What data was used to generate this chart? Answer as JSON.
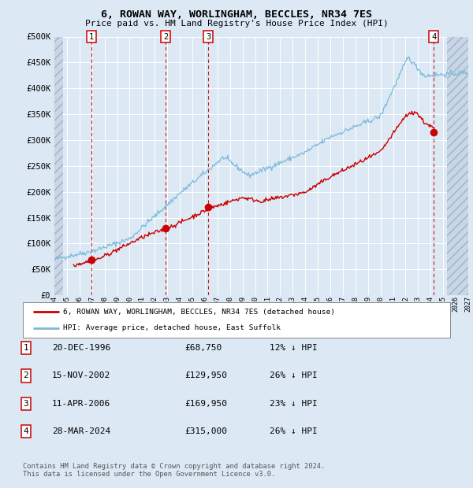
{
  "title": "6, ROWAN WAY, WORLINGHAM, BECCLES, NR34 7ES",
  "subtitle": "Price paid vs. HM Land Registry's House Price Index (HPI)",
  "background_color": "#dce9f5",
  "plot_bg_color": "#dce9f5",
  "hpi_line_color": "#7ab8d9",
  "price_line_color": "#cc0000",
  "marker_color": "#cc0000",
  "vline_color": "#cc0000",
  "grid_color": "#ffffff",
  "ylim": [
    0,
    500000
  ],
  "yticks": [
    0,
    50000,
    100000,
    150000,
    200000,
    250000,
    300000,
    350000,
    400000,
    450000,
    500000
  ],
  "xlabel_start": 1994,
  "xlabel_end": 2027,
  "transactions": [
    {
      "num": 1,
      "date": "20-DEC-1996",
      "year": 1996.96,
      "price": 68750,
      "pct": "12%",
      "dir": "↓"
    },
    {
      "num": 2,
      "date": "15-NOV-2002",
      "year": 2002.87,
      "price": 129950,
      "pct": "26%",
      "dir": "↓"
    },
    {
      "num": 3,
      "date": "11-APR-2006",
      "year": 2006.27,
      "price": 169950,
      "pct": "23%",
      "dir": "↓"
    },
    {
      "num": 4,
      "date": "28-MAR-2024",
      "year": 2024.24,
      "price": 315000,
      "pct": "26%",
      "dir": "↓"
    }
  ],
  "legend_line1": "6, ROWAN WAY, WORLINGHAM, BECCLES, NR34 7ES (detached house)",
  "legend_line2": "HPI: Average price, detached house, East Suffolk",
  "footer": "Contains HM Land Registry data © Crown copyright and database right 2024.\nThis data is licensed under the Open Government Licence v3.0.",
  "table_rows": [
    {
      "num": 1,
      "date": "20-DEC-1996",
      "price": "£68,750",
      "note": "12% ↓ HPI"
    },
    {
      "num": 2,
      "date": "15-NOV-2002",
      "price": "£129,950",
      "note": "26% ↓ HPI"
    },
    {
      "num": 3,
      "date": "11-APR-2006",
      "price": "£169,950",
      "note": "23% ↓ HPI"
    },
    {
      "num": 4,
      "date": "28-MAR-2024",
      "price": "£315,000",
      "note": "26% ↓ HPI"
    }
  ]
}
